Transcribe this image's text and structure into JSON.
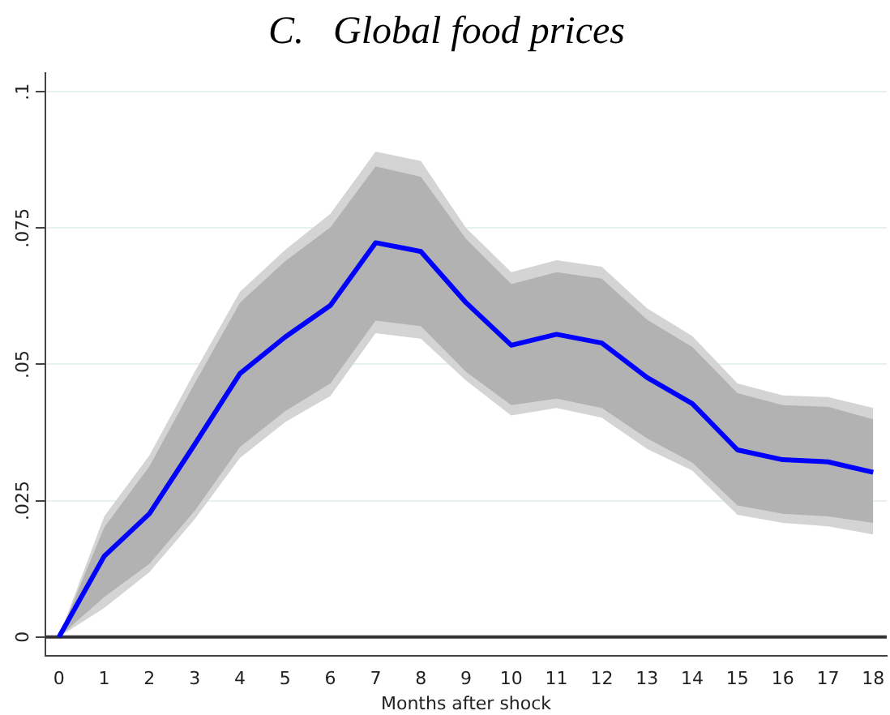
{
  "chart_data": {
    "type": "line",
    "title": "C.   Global food prices",
    "xlabel": "Months after shock",
    "x": [
      0,
      1,
      2,
      3,
      4,
      5,
      6,
      7,
      8,
      9,
      10,
      11,
      12,
      13,
      14,
      15,
      16,
      17,
      18
    ],
    "series": [
      {
        "type": "area",
        "color": "#d4d4d4",
        "values": [
          null,
          null,
          null,
          null,
          null,
          null,
          null,
          null,
          null,
          null,
          null,
          null,
          null,
          null,
          null,
          null,
          null,
          null,
          null
        ],
        "lower": [
          0,
          0.0053,
          0.0119,
          0.0216,
          0.0328,
          0.0394,
          0.0442,
          0.0557,
          0.0547,
          0.047,
          0.0406,
          0.042,
          0.0402,
          0.0345,
          0.0305,
          0.0224,
          0.0209,
          0.0203,
          0.0188
        ],
        "upper": [
          0,
          0.0221,
          0.0333,
          0.0486,
          0.0633,
          0.071,
          0.0776,
          0.089,
          0.0873,
          0.075,
          0.0669,
          0.0691,
          0.0679,
          0.0603,
          0.0552,
          0.0465,
          0.0443,
          0.044,
          0.042
        ]
      },
      {
        "type": "area",
        "color": "#b2b2b2",
        "values": [
          null,
          null,
          null,
          null,
          null,
          null,
          null,
          null,
          null,
          null,
          null,
          null,
          null,
          null,
          null,
          null,
          null,
          null,
          null
        ],
        "lower": [
          0,
          0.0073,
          0.0134,
          0.0231,
          0.0348,
          0.0414,
          0.0465,
          0.058,
          0.057,
          0.0486,
          0.0425,
          0.0437,
          0.042,
          0.0364,
          0.032,
          0.0241,
          0.0226,
          0.0221,
          0.0209
        ],
        "upper": [
          0,
          0.0201,
          0.0313,
          0.0465,
          0.0613,
          0.0689,
          0.0751,
          0.0863,
          0.0844,
          0.073,
          0.0647,
          0.0669,
          0.0657,
          0.0582,
          0.0532,
          0.0447,
          0.0425,
          0.0422,
          0.0399
        ]
      },
      {
        "type": "line",
        "color": "#0000ff",
        "values": [
          0,
          0.0148,
          0.0226,
          0.0353,
          0.0483,
          0.055,
          0.0608,
          0.0723,
          0.0707,
          0.0613,
          0.0535,
          0.0555,
          0.0539,
          0.0476,
          0.0428,
          0.0343,
          0.0325,
          0.0321,
          0.0302
        ]
      }
    ],
    "xlim": [
      -0.3,
      18.3
    ],
    "xticks": [
      0,
      1,
      2,
      3,
      4,
      5,
      6,
      7,
      8,
      9,
      10,
      11,
      12,
      13,
      14,
      15,
      16,
      17,
      18
    ],
    "ylim": [
      -0.0035,
      0.1035
    ],
    "yticks": [
      0,
      {
        "value": 0.025,
        "label": ".025"
      },
      {
        "value": 0.05,
        "label": ".05"
      },
      {
        "value": 0.075,
        "label": ".075"
      },
      {
        "value": 0.1,
        "label": ".1"
      }
    ],
    "ref_lines": [
      {
        "axis": "y",
        "value": 0,
        "color": "#333333"
      }
    ],
    "grid": "y",
    "legend": false,
    "marker": "none",
    "line_style": "solid"
  }
}
